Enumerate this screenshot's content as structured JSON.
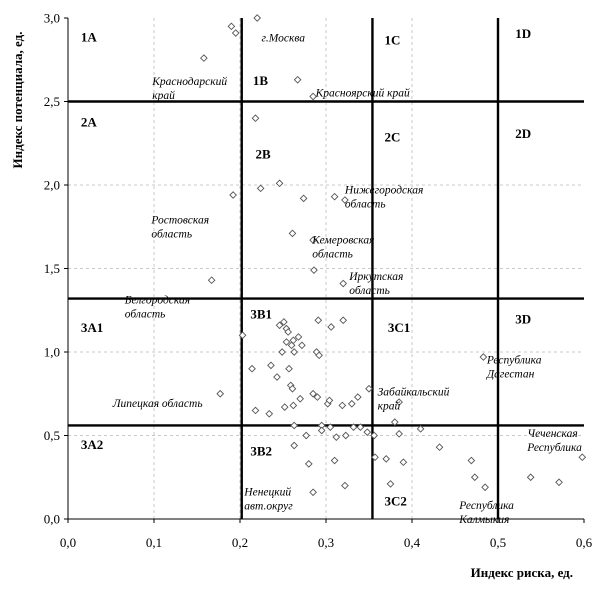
{
  "chart_data": {
    "type": "scatter",
    "title": "",
    "xlabel": "Индекс риска, ед.",
    "ylabel": "Индекс потенциала, ед.",
    "xlim": [
      0,
      0.6
    ],
    "ylim": [
      0,
      3.0
    ],
    "xticks": [
      {
        "v": 0.0,
        "label": "0,0"
      },
      {
        "v": 0.1,
        "label": "0,1"
      },
      {
        "v": 0.2,
        "label": "0,2"
      },
      {
        "v": 0.3,
        "label": "0,3"
      },
      {
        "v": 0.4,
        "label": "0,4"
      },
      {
        "v": 0.5,
        "label": "0,5"
      },
      {
        "v": 0.6,
        "label": "0,6"
      }
    ],
    "yticks": [
      {
        "v": 0.0,
        "label": "0,0"
      },
      {
        "v": 0.5,
        "label": "0,5"
      },
      {
        "v": 1.0,
        "label": "1,0"
      },
      {
        "v": 1.5,
        "label": "1,5"
      },
      {
        "v": 2.0,
        "label": "2,0"
      },
      {
        "v": 2.5,
        "label": "2,5"
      },
      {
        "v": 3.0,
        "label": "3,0"
      }
    ],
    "grid": true,
    "boundaries": {
      "x": [
        0.202,
        0.354,
        0.5
      ],
      "y": [
        2.5,
        1.32,
        0.56
      ]
    },
    "zones": [
      {
        "label": "1A",
        "x": 0.015,
        "y": 2.86
      },
      {
        "label": "1B",
        "x": 0.215,
        "y": 2.6
      },
      {
        "label": "1C",
        "x": 0.368,
        "y": 2.84
      },
      {
        "label": "1D",
        "x": 0.52,
        "y": 2.88
      },
      {
        "label": "2A",
        "x": 0.015,
        "y": 2.35
      },
      {
        "label": "2B",
        "x": 0.218,
        "y": 2.16
      },
      {
        "label": "2C",
        "x": 0.368,
        "y": 2.26
      },
      {
        "label": "2D",
        "x": 0.52,
        "y": 2.28
      },
      {
        "label": "3A1",
        "x": 0.015,
        "y": 1.12
      },
      {
        "label": "3B1",
        "x": 0.212,
        "y": 1.2
      },
      {
        "label": "3C1",
        "x": 0.372,
        "y": 1.12
      },
      {
        "label": "3D",
        "x": 0.52,
        "y": 1.17
      },
      {
        "label": "3A2",
        "x": 0.015,
        "y": 0.42
      },
      {
        "label": "3B2",
        "x": 0.212,
        "y": 0.38
      },
      {
        "label": "3C2",
        "x": 0.368,
        "y": 0.08
      }
    ],
    "annotations": [
      {
        "lines": [
          "г.Москва"
        ],
        "x": 0.225,
        "y": 2.86
      },
      {
        "lines": [
          "Краснодарский",
          "край"
        ],
        "x": 0.098,
        "y": 2.6
      },
      {
        "lines": [
          "Красноярский край"
        ],
        "x": 0.288,
        "y": 2.53
      },
      {
        "lines": [
          "Нижегородская",
          "область"
        ],
        "x": 0.322,
        "y": 1.95
      },
      {
        "lines": [
          "Ростовская",
          "область"
        ],
        "x": 0.097,
        "y": 1.77
      },
      {
        "lines": [
          "Кемеровская",
          "область"
        ],
        "x": 0.284,
        "y": 1.65
      },
      {
        "lines": [
          "Иркутская",
          "область"
        ],
        "x": 0.327,
        "y": 1.43
      },
      {
        "lines": [
          "Белгородская",
          "область"
        ],
        "x": 0.066,
        "y": 1.29
      },
      {
        "lines": [
          "Республика",
          "Дагестан"
        ],
        "x": 0.487,
        "y": 0.93
      },
      {
        "lines": [
          "Забайкальский",
          "край"
        ],
        "x": 0.36,
        "y": 0.74
      },
      {
        "lines": [
          "Липецкая область"
        ],
        "x": 0.052,
        "y": 0.67
      },
      {
        "lines": [
          "Чеченская",
          "Республика"
        ],
        "x": 0.534,
        "y": 0.49
      },
      {
        "lines": [
          "Ненецкий",
          "авт.округ"
        ],
        "x": 0.205,
        "y": 0.14
      },
      {
        "lines": [
          "Республика",
          "Калмыкия"
        ],
        "x": 0.455,
        "y": 0.06
      }
    ],
    "points": [
      [
        0.22,
        3.0
      ],
      [
        0.19,
        2.95
      ],
      [
        0.195,
        2.91
      ],
      [
        0.158,
        2.76
      ],
      [
        0.267,
        2.63
      ],
      [
        0.285,
        2.53
      ],
      [
        0.218,
        2.4
      ],
      [
        0.246,
        2.01
      ],
      [
        0.224,
        1.98
      ],
      [
        0.192,
        1.94
      ],
      [
        0.274,
        1.92
      ],
      [
        0.31,
        1.93
      ],
      [
        0.322,
        1.91
      ],
      [
        0.261,
        1.71
      ],
      [
        0.285,
        1.67
      ],
      [
        0.286,
        1.49
      ],
      [
        0.167,
        1.43
      ],
      [
        0.32,
        1.41
      ],
      [
        0.203,
        1.1
      ],
      [
        0.246,
        1.16
      ],
      [
        0.251,
        1.18
      ],
      [
        0.254,
        1.14
      ],
      [
        0.256,
        1.12
      ],
      [
        0.262,
        1.07
      ],
      [
        0.268,
        1.09
      ],
      [
        0.272,
        1.04
      ],
      [
        0.26,
        1.04
      ],
      [
        0.263,
        1.0
      ],
      [
        0.254,
        1.06
      ],
      [
        0.249,
        1.0
      ],
      [
        0.291,
        1.19
      ],
      [
        0.306,
        1.15
      ],
      [
        0.32,
        1.19
      ],
      [
        0.289,
        1.0
      ],
      [
        0.292,
        0.98
      ],
      [
        0.214,
        0.9
      ],
      [
        0.236,
        0.92
      ],
      [
        0.257,
        0.9
      ],
      [
        0.259,
        0.8
      ],
      [
        0.261,
        0.78
      ],
      [
        0.27,
        0.72
      ],
      [
        0.243,
        0.85
      ],
      [
        0.285,
        0.75
      ],
      [
        0.29,
        0.73
      ],
      [
        0.302,
        0.69
      ],
      [
        0.304,
        0.71
      ],
      [
        0.319,
        0.68
      ],
      [
        0.33,
        0.69
      ],
      [
        0.337,
        0.73
      ],
      [
        0.35,
        0.78
      ],
      [
        0.218,
        0.65
      ],
      [
        0.234,
        0.63
      ],
      [
        0.252,
        0.67
      ],
      [
        0.262,
        0.68
      ],
      [
        0.263,
        0.56
      ],
      [
        0.277,
        0.5
      ],
      [
        0.295,
        0.56
      ],
      [
        0.295,
        0.53
      ],
      [
        0.305,
        0.55
      ],
      [
        0.312,
        0.49
      ],
      [
        0.323,
        0.5
      ],
      [
        0.332,
        0.55
      ],
      [
        0.34,
        0.55
      ],
      [
        0.348,
        0.52
      ],
      [
        0.356,
        0.5
      ],
      [
        0.38,
        0.58
      ],
      [
        0.385,
        0.51
      ],
      [
        0.39,
        0.34
      ],
      [
        0.41,
        0.54
      ],
      [
        0.432,
        0.43
      ],
      [
        0.357,
        0.37
      ],
      [
        0.37,
        0.36
      ],
      [
        0.375,
        0.21
      ],
      [
        0.263,
        0.44
      ],
      [
        0.28,
        0.33
      ],
      [
        0.31,
        0.35
      ],
      [
        0.322,
        0.2
      ],
      [
        0.285,
        0.16
      ],
      [
        0.469,
        0.35
      ],
      [
        0.473,
        0.25
      ],
      [
        0.485,
        0.19
      ],
      [
        0.483,
        0.97
      ],
      [
        0.385,
        0.7
      ],
      [
        0.177,
        0.75
      ],
      [
        0.538,
        0.25
      ],
      [
        0.571,
        0.22
      ],
      [
        0.598,
        0.37
      ]
    ]
  }
}
